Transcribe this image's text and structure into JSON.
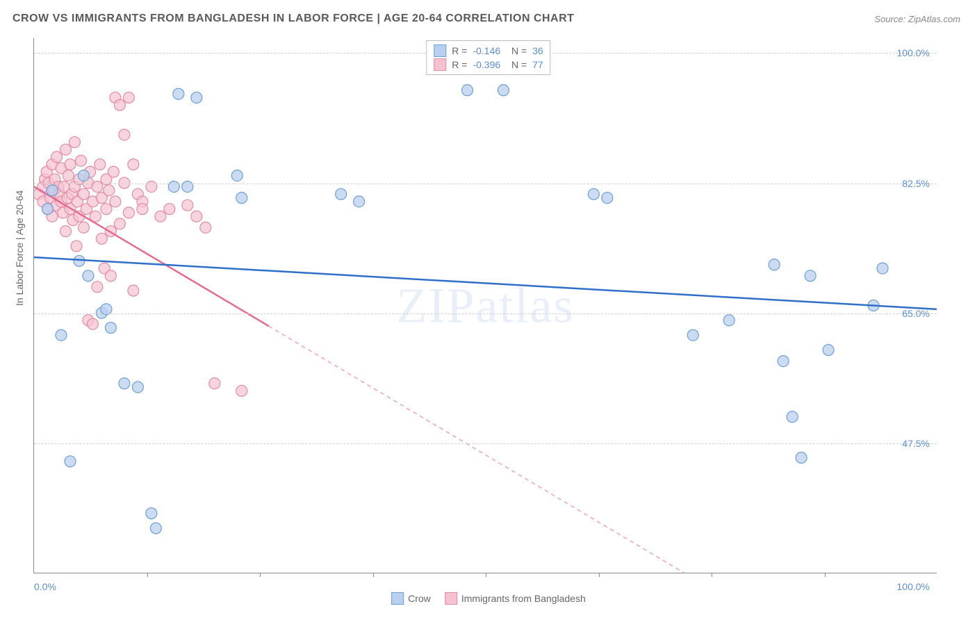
{
  "title": "CROW VS IMMIGRANTS FROM BANGLADESH IN LABOR FORCE | AGE 20-64 CORRELATION CHART",
  "source": "Source: ZipAtlas.com",
  "ylabel": "In Labor Force | Age 20-64",
  "watermark": "ZIPatlas",
  "chart": {
    "type": "scatter",
    "xlim": [
      0,
      100
    ],
    "ylim": [
      30,
      102
    ],
    "xtick_positions": [
      12.5,
      25,
      37.5,
      50,
      62.5,
      75,
      87.5
    ],
    "ytick_labels": [
      {
        "y": 100.0,
        "label": "100.0%"
      },
      {
        "y": 82.5,
        "label": "82.5%"
      },
      {
        "y": 65.0,
        "label": "65.0%"
      },
      {
        "y": 47.5,
        "label": "47.5%"
      }
    ],
    "xlabel_min": "0.0%",
    "xlabel_max": "100.0%",
    "grid_color": "#d0d0d0",
    "background_color": "#ffffff",
    "series": [
      {
        "name": "Crow",
        "marker_fill": "#b9d0ee",
        "marker_stroke": "#6a9fd8",
        "marker_radius": 8,
        "marker_opacity": 0.75,
        "line_color": "#2f6fc9",
        "line_width": 2.5,
        "R": "-0.146",
        "N": "36",
        "trend": {
          "x1": 0,
          "y1": 72.5,
          "x2": 100,
          "y2": 65.5
        },
        "trend_solid_until_x": 100,
        "points": [
          [
            1.5,
            79
          ],
          [
            2,
            81.5
          ],
          [
            3,
            62
          ],
          [
            4,
            45
          ],
          [
            5,
            72
          ],
          [
            5.5,
            83.5
          ],
          [
            6,
            70
          ],
          [
            7.5,
            65
          ],
          [
            8,
            65.5
          ],
          [
            8.5,
            63
          ],
          [
            10,
            55.5
          ],
          [
            11.5,
            55
          ],
          [
            13,
            38
          ],
          [
            13.5,
            36
          ],
          [
            15.5,
            82
          ],
          [
            16,
            94.5
          ],
          [
            17,
            82
          ],
          [
            18,
            94
          ],
          [
            22.5,
            83.5
          ],
          [
            23,
            80.5
          ],
          [
            34,
            81
          ],
          [
            36,
            80
          ],
          [
            48,
            95
          ],
          [
            52,
            95
          ],
          [
            62,
            81
          ],
          [
            63.5,
            80.5
          ],
          [
            73,
            62
          ],
          [
            77,
            64
          ],
          [
            82,
            71.5
          ],
          [
            83,
            58.5
          ],
          [
            84,
            51
          ],
          [
            85,
            45.5
          ],
          [
            86,
            70
          ],
          [
            88,
            60
          ],
          [
            93,
            66
          ],
          [
            94,
            71
          ]
        ]
      },
      {
        "name": "Immigrants from Bangladesh",
        "marker_fill": "#f5c3d0",
        "marker_stroke": "#e38ba4",
        "marker_radius": 8,
        "marker_opacity": 0.7,
        "line_color": "#e76a8f",
        "dash_color": "#f0a8bc",
        "line_width": 2.5,
        "R": "-0.396",
        "N": "77",
        "trend": {
          "x1": 0,
          "y1": 82,
          "x2": 72,
          "y2": 30
        },
        "trend_solid_until_x": 26,
        "points": [
          [
            0.5,
            81
          ],
          [
            1,
            82
          ],
          [
            1,
            80
          ],
          [
            1.2,
            83
          ],
          [
            1.4,
            84
          ],
          [
            1.5,
            79
          ],
          [
            1.6,
            82.5
          ],
          [
            1.8,
            80.5
          ],
          [
            2,
            85
          ],
          [
            2,
            78
          ],
          [
            2.2,
            81.5
          ],
          [
            2.3,
            83
          ],
          [
            2.5,
            86
          ],
          [
            2.5,
            79.5
          ],
          [
            2.7,
            82
          ],
          [
            2.8,
            81
          ],
          [
            3,
            84.5
          ],
          [
            3,
            80
          ],
          [
            3.2,
            78.5
          ],
          [
            3.3,
            82
          ],
          [
            3.5,
            87
          ],
          [
            3.5,
            76
          ],
          [
            3.7,
            80.5
          ],
          [
            3.8,
            83.5
          ],
          [
            4,
            85
          ],
          [
            4,
            79
          ],
          [
            4.2,
            81
          ],
          [
            4.3,
            77.5
          ],
          [
            4.5,
            88
          ],
          [
            4.5,
            82
          ],
          [
            4.7,
            74
          ],
          [
            4.8,
            80
          ],
          [
            5,
            83
          ],
          [
            5,
            78
          ],
          [
            5.2,
            85.5
          ],
          [
            5.5,
            81
          ],
          [
            5.5,
            76.5
          ],
          [
            5.8,
            79
          ],
          [
            6,
            82.5
          ],
          [
            6,
            64
          ],
          [
            6.2,
            84
          ],
          [
            6.5,
            80
          ],
          [
            6.5,
            63.5
          ],
          [
            6.8,
            78
          ],
          [
            7,
            82
          ],
          [
            7,
            68.5
          ],
          [
            7.3,
            85
          ],
          [
            7.5,
            80.5
          ],
          [
            7.5,
            75
          ],
          [
            7.8,
            71
          ],
          [
            8,
            83
          ],
          [
            8,
            79
          ],
          [
            8.3,
            81.5
          ],
          [
            8.5,
            76
          ],
          [
            8.5,
            70
          ],
          [
            8.8,
            84
          ],
          [
            9,
            94
          ],
          [
            9,
            80
          ],
          [
            9.5,
            93
          ],
          [
            9.5,
            77
          ],
          [
            10,
            89
          ],
          [
            10,
            82.5
          ],
          [
            10.5,
            94
          ],
          [
            10.5,
            78.5
          ],
          [
            11,
            85
          ],
          [
            11,
            68
          ],
          [
            11.5,
            81
          ],
          [
            12,
            80
          ],
          [
            12,
            79
          ],
          [
            13,
            82
          ],
          [
            14,
            78
          ],
          [
            15,
            79
          ],
          [
            17,
            79.5
          ],
          [
            18,
            78
          ],
          [
            19,
            76.5
          ],
          [
            20,
            55.5
          ],
          [
            23,
            54.5
          ]
        ]
      }
    ]
  },
  "bottom_legend": [
    {
      "label": "Crow",
      "swatch": "blue"
    },
    {
      "label": "Immigrants from Bangladesh",
      "swatch": "pink"
    }
  ]
}
